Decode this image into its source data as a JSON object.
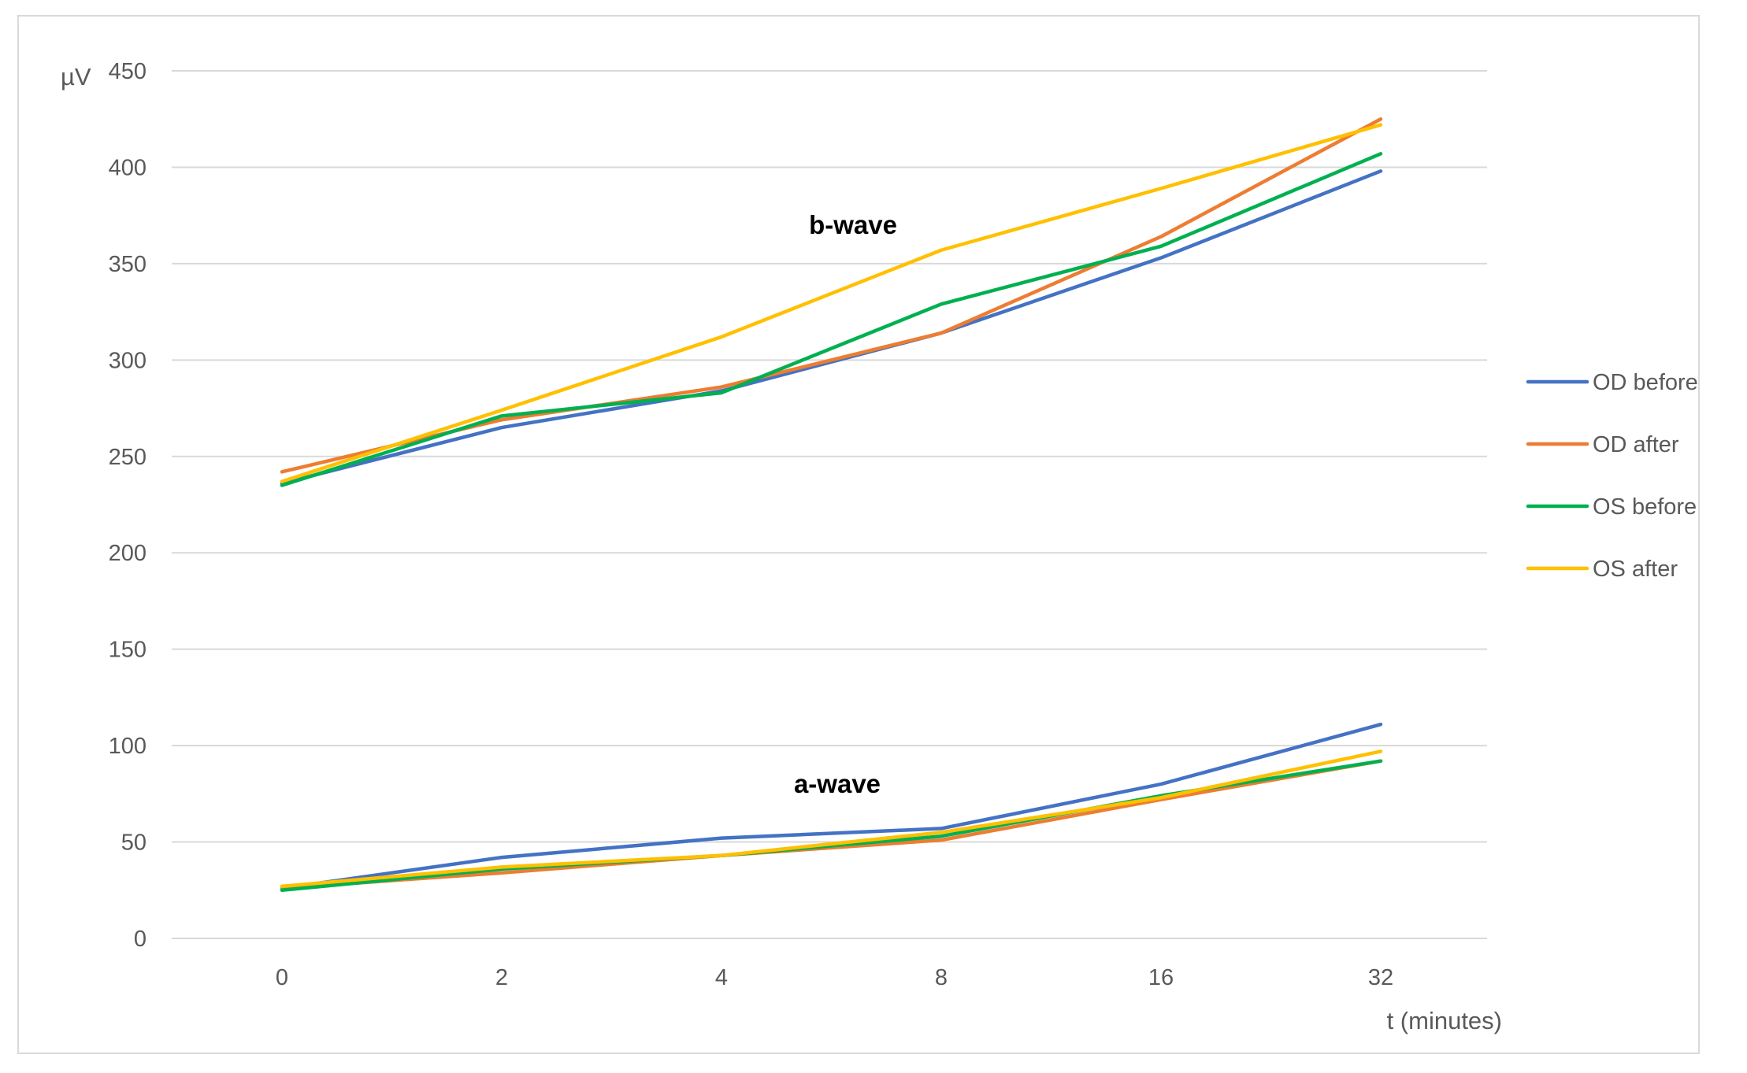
{
  "chart_data": {
    "type": "line",
    "title": "",
    "ylabel": "µV",
    "xlabel": "t (minutes)",
    "categories": [
      "0",
      "2",
      "4",
      "8",
      "16",
      "32"
    ],
    "ylim": [
      0,
      450
    ],
    "yticks": [
      0,
      50,
      100,
      150,
      200,
      250,
      300,
      350,
      400,
      450
    ],
    "grid": "horizontal",
    "legend_position": "right",
    "annotations": [
      "b-wave",
      "a-wave"
    ],
    "series": [
      {
        "name": "OD before",
        "color": "#4472C4",
        "b_wave": [
          236,
          265,
          284,
          314,
          353,
          398
        ],
        "a_wave": [
          26,
          42,
          52,
          57,
          80,
          111
        ]
      },
      {
        "name": "OD after",
        "color": "#ED7D31",
        "b_wave": [
          242,
          269,
          286,
          314,
          364,
          425
        ],
        "a_wave": [
          26,
          34,
          43,
          51,
          72,
          92
        ]
      },
      {
        "name": "OS before",
        "color": "#00B050",
        "b_wave": [
          235,
          271,
          283,
          329,
          359,
          407
        ],
        "a_wave": [
          25,
          36,
          43,
          53,
          74,
          92
        ]
      },
      {
        "name": "OS after",
        "color": "#FFC000",
        "b_wave": [
          237,
          274,
          312,
          357,
          389,
          422
        ],
        "a_wave": [
          27,
          37,
          43,
          55,
          73,
          97
        ]
      }
    ]
  }
}
